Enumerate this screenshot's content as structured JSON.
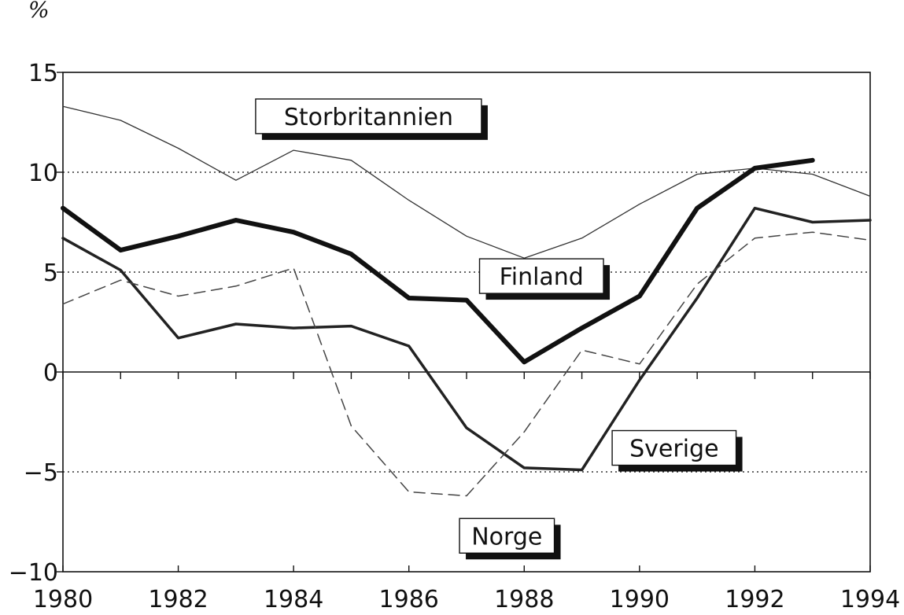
{
  "chart_data": {
    "type": "line",
    "unit_label": "%",
    "x": [
      1980,
      1981,
      1982,
      1983,
      1984,
      1985,
      1986,
      1987,
      1988,
      1989,
      1990,
      1991,
      1992,
      1993,
      1994
    ],
    "xlim": [
      1980,
      1994
    ],
    "ylim": [
      -10,
      15
    ],
    "x_ticks": [
      "1980",
      "1982",
      "1984",
      "1986",
      "1988",
      "1990",
      "1992",
      "1994"
    ],
    "y_ticks": [
      "15",
      "10",
      "5",
      "0",
      "-5",
      "-10"
    ],
    "y_tick_values": [
      15,
      10,
      5,
      0,
      -5,
      -10
    ],
    "gridlines_dotted": [
      10,
      5,
      -5
    ],
    "zero_line": 0,
    "series": [
      {
        "name": "Storbritannien",
        "style": "thin-solid",
        "color": "#333333",
        "values": [
          13.3,
          12.6,
          11.2,
          9.6,
          11.1,
          10.6,
          8.6,
          6.8,
          5.7,
          6.7,
          8.4,
          9.9,
          10.2,
          9.9,
          8.8
        ]
      },
      {
        "name": "Finland",
        "style": "thick-solid",
        "color": "#111111",
        "values": [
          8.2,
          6.1,
          6.8,
          7.6,
          7.0,
          5.9,
          3.7,
          3.6,
          0.5,
          2.2,
          3.8,
          8.2,
          10.2,
          10.6,
          null
        ]
      },
      {
        "name": "Sverige",
        "style": "medium-solid",
        "color": "#222222",
        "values": [
          6.7,
          5.1,
          1.7,
          2.4,
          2.2,
          2.3,
          1.3,
          -2.8,
          -4.8,
          -4.9,
          -0.4,
          3.7,
          8.2,
          7.5,
          7.6
        ]
      },
      {
        "name": "Norge",
        "style": "dashed",
        "color": "#444444",
        "values": [
          3.4,
          4.6,
          3.8,
          4.3,
          5.2,
          -2.7,
          -6.0,
          -6.2,
          -3.0,
          1.1,
          0.4,
          4.4,
          6.7,
          7.0,
          6.6
        ]
      }
    ],
    "annotations": [
      {
        "text": "Storbritannien",
        "x": 1985.3,
        "y": 12.8
      },
      {
        "text": "Finland",
        "x": 1988.3,
        "y": 4.8
      },
      {
        "text": "Sverige",
        "x": 1990.6,
        "y": -3.8
      },
      {
        "text": "Norge",
        "x": 1987.7,
        "y": -8.2
      }
    ]
  }
}
